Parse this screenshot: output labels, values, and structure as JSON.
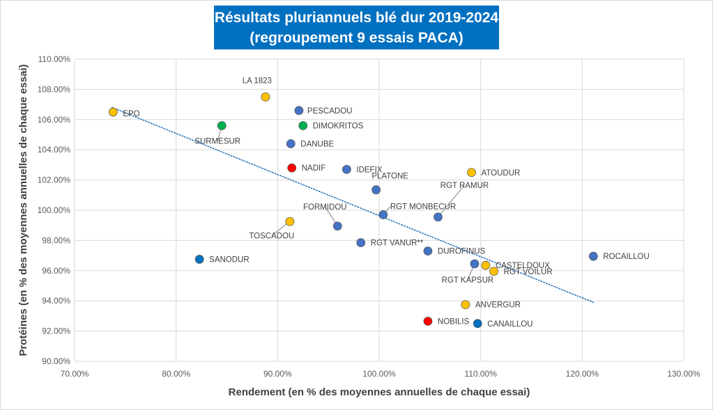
{
  "chart_data": {
    "type": "scatter",
    "title": "Résultats pluriannuels blé dur 2019-2024",
    "subtitle": "(regroupement 9 essais PACA)",
    "xlabel": "Rendement (en % des moyennes annuelles de chaque essai)",
    "ylabel": "Protéines (en % des moyennes annuelles de chaque essai)",
    "xlim": [
      70,
      130
    ],
    "ylim": [
      90,
      110
    ],
    "x_ticks": [
      "70.00%",
      "80.00%",
      "90.00%",
      "100.00%",
      "110.00%",
      "120.00%",
      "130.00%"
    ],
    "y_ticks": [
      "90.00%",
      "92.00%",
      "94.00%",
      "96.00%",
      "98.00%",
      "100.00%",
      "102.00%",
      "104.00%",
      "106.00%",
      "108.00%",
      "110.00%"
    ],
    "grid": true,
    "legend": "none",
    "colors": {
      "blue": "#4472c4",
      "dark_blue": "#0070c0",
      "yellow": "#ffc000",
      "green": "#00b050",
      "red": "#ff0000",
      "trend": "#2e75b6"
    },
    "trendline": {
      "x": [
        73.7,
        121.1
      ],
      "y": [
        106.8,
        93.9
      ],
      "style": "dotted"
    },
    "points": [
      {
        "label": "EPO",
        "x": 73.8,
        "y": 106.5,
        "color": "yellow"
      },
      {
        "label": "LA 1823",
        "x": 88.8,
        "y": 107.5,
        "color": "yellow"
      },
      {
        "label": "PESCADOU",
        "x": 92.1,
        "y": 106.6,
        "color": "blue"
      },
      {
        "label": "DIMOKRITOS",
        "x": 92.5,
        "y": 105.6,
        "color": "green"
      },
      {
        "label": "SURMESUR",
        "x": 84.5,
        "y": 105.6,
        "color": "green"
      },
      {
        "label": "DANUBE",
        "x": 91.3,
        "y": 104.4,
        "color": "blue"
      },
      {
        "label": "NADIF",
        "x": 91.4,
        "y": 102.8,
        "color": "red"
      },
      {
        "label": "IDEFIX",
        "x": 96.8,
        "y": 102.7,
        "color": "blue"
      },
      {
        "label": "ATOUDUR",
        "x": 109.1,
        "y": 102.5,
        "color": "yellow"
      },
      {
        "label": "PLATONE",
        "x": 99.7,
        "y": 101.35,
        "color": "blue"
      },
      {
        "label": "RGT MONBECUR",
        "x": 100.4,
        "y": 99.7,
        "color": "blue"
      },
      {
        "label": "RGT RAMUR",
        "x": 105.8,
        "y": 99.55,
        "color": "blue"
      },
      {
        "label": "TOSCADOU",
        "x": 91.2,
        "y": 99.25,
        "color": "yellow"
      },
      {
        "label": "FORMIDOU",
        "x": 95.9,
        "y": 98.95,
        "color": "blue"
      },
      {
        "label": "RGT VANUR**",
        "x": 98.2,
        "y": 97.85,
        "color": "blue"
      },
      {
        "label": "DUROFINUS",
        "x": 104.8,
        "y": 97.3,
        "color": "blue"
      },
      {
        "label": "ROCAILLOU",
        "x": 121.1,
        "y": 96.95,
        "color": "blue"
      },
      {
        "label": "SANODUR",
        "x": 82.3,
        "y": 96.75,
        "color": "dark_blue"
      },
      {
        "label": "RGT KAPSUR",
        "x": 109.4,
        "y": 96.45,
        "color": "blue"
      },
      {
        "label": "CASTELDOUX",
        "x": 110.5,
        "y": 96.35,
        "color": "yellow"
      },
      {
        "label": "RGT VOILUR",
        "x": 111.3,
        "y": 95.95,
        "color": "yellow"
      },
      {
        "label": "ANVERGUR",
        "x": 108.5,
        "y": 93.75,
        "color": "yellow"
      },
      {
        "label": "NOBILIS",
        "x": 104.8,
        "y": 92.65,
        "color": "red"
      },
      {
        "label": "CANAILLOU",
        "x": 109.7,
        "y": 92.5,
        "color": "dark_blue"
      }
    ]
  }
}
